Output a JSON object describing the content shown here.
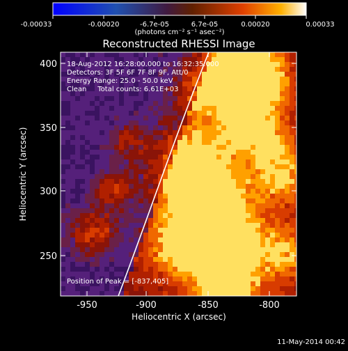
{
  "colorbar": {
    "ticks": [
      "-0.00033",
      "-0.00020",
      "-6.7e-05",
      "6.7e-05",
      "0.00020",
      "0.00033"
    ],
    "units": "(photons cm⁻² s⁻¹ asec⁻²)"
  },
  "title": "Reconstructed RHESSI Image",
  "info": {
    "line1": "18-Aug-2012 16:28:00.000 to 16:32:35.000",
    "line2": "Detectors: 3F 5F 6F 7F 8F 9F, Att/0",
    "line3": "Energy Range: 25.0 - 50.0 keV",
    "line4": "Clean     Total counts: 6.61E+03"
  },
  "peak": "Position of Peak = [-837,405]",
  "axes": {
    "xlabel": "Heliocentric X (arcsec)",
    "ylabel": "Heliocentric Y (arcsec)",
    "xticks": [
      "-950",
      "-900",
      "-850",
      "-800"
    ],
    "yticks": [
      "250",
      "300",
      "350",
      "400"
    ]
  },
  "footer": "11-May-2014 00:42",
  "colors": {
    "background": "#000000",
    "frame": "#ffffff"
  }
}
